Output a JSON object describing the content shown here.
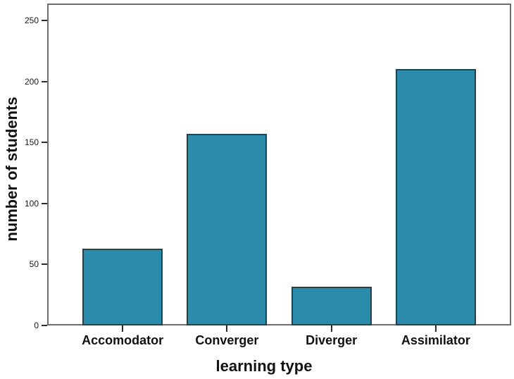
{
  "chart_data": {
    "type": "bar",
    "title": "",
    "categories": [
      "Accomodator",
      "Converger",
      "Diverger",
      "Assimilator"
    ],
    "values": [
      63,
      157,
      32,
      210
    ],
    "xlabel": "learning type",
    "ylabel": "number of students",
    "yticks": [
      0,
      50,
      100,
      150,
      200,
      250
    ],
    "ylim": [
      0,
      264
    ],
    "grid": false,
    "legend": "none",
    "bar_color": "#2b8bab",
    "bar_border_color": "#21424f",
    "frame_color": "#6e6e6e",
    "tick_color": "#2b2b2b",
    "text_color": "#111111"
  }
}
